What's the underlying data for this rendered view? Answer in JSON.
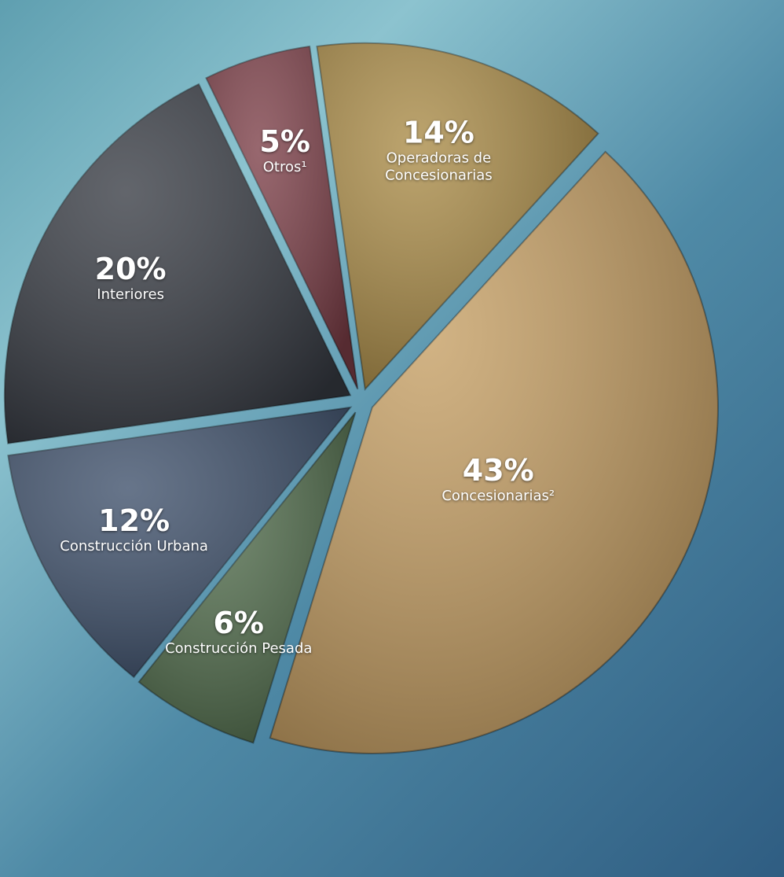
{
  "chart_data": {
    "type": "pie",
    "categories": [
      "Operadoras de Concesionarias",
      "Concesionarias²",
      "Construcción Pesada",
      "Construcción Urbana",
      "Interiores",
      "Otros¹"
    ],
    "values": [
      14,
      43,
      6,
      12,
      20,
      5
    ],
    "value_labels": [
      "14%",
      "43%",
      "6%",
      "12%",
      "20%",
      "5%"
    ],
    "colors": [
      "#a98a45",
      "#c59e62",
      "#4f6b4a",
      "#3c4e69",
      "#363a42",
      "#7b3d46"
    ]
  }
}
